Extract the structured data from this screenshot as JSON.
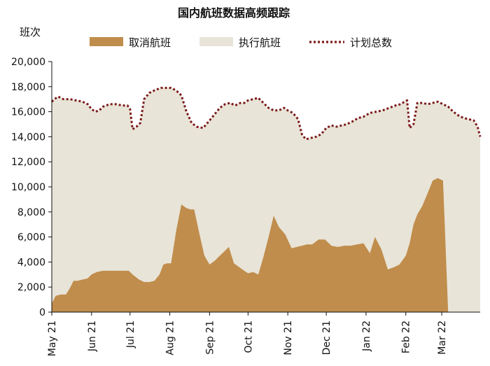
{
  "chart_data": {
    "type": "area",
    "title": "国内航班数据高频跟踪",
    "ylabel": "班次",
    "ylim": [
      0,
      20000
    ],
    "yticks": [
      0,
      2000,
      4000,
      6000,
      8000,
      10000,
      12000,
      14000,
      16000,
      18000,
      20000
    ],
    "ytick_labels": [
      "0",
      "2,000",
      "4,000",
      "6,000",
      "8,000",
      "10,000",
      "12,000",
      "14,000",
      "16,000",
      "18,000",
      "20,000"
    ],
    "xlim": [
      "2021-05-01",
      "2022-03-31"
    ],
    "xticks": [
      "2021-05-01",
      "2021-06-01",
      "2021-07-01",
      "2021-08-01",
      "2021-09-01",
      "2021-10-01",
      "2021-11-01",
      "2021-12-01",
      "2022-01-01",
      "2022-02-01",
      "2022-03-01"
    ],
    "xtick_labels": [
      "May 21",
      "Jun 21",
      "Jul 21",
      "Aug 21",
      "Sep 21",
      "Oct 21",
      "Nov 21",
      "Dec 21",
      "Jan 22",
      "Feb 22",
      "Mar 22"
    ],
    "legend_position": "top",
    "colors": {
      "cancelled": "#c08d4c",
      "executed": "#e8e4d8",
      "total": "#7b1a1a"
    },
    "series": [
      {
        "name": "取消航班",
        "kind": "area",
        "x": [
          "2021-05-01",
          "2021-05-04",
          "2021-05-08",
          "2021-05-12",
          "2021-05-15",
          "2021-05-18",
          "2021-05-21",
          "2021-05-25",
          "2021-05-29",
          "2021-06-01",
          "2021-06-05",
          "2021-06-10",
          "2021-06-15",
          "2021-06-20",
          "2021-06-25",
          "2021-06-30",
          "2021-07-03",
          "2021-07-08",
          "2021-07-12",
          "2021-07-16",
          "2021-07-20",
          "2021-07-24",
          "2021-07-27",
          "2021-07-30",
          "2021-08-02",
          "2021-08-06",
          "2021-08-10",
          "2021-08-14",
          "2021-08-17",
          "2021-08-20",
          "2021-08-24",
          "2021-08-28",
          "2021-09-01",
          "2021-09-05",
          "2021-09-09",
          "2021-09-12",
          "2021-09-16",
          "2021-09-20",
          "2021-09-24",
          "2021-09-28",
          "2021-10-01",
          "2021-10-05",
          "2021-10-09",
          "2021-10-13",
          "2021-10-17",
          "2021-10-21",
          "2021-10-25",
          "2021-10-30",
          "2021-11-04",
          "2021-11-08",
          "2021-11-12",
          "2021-11-16",
          "2021-11-20",
          "2021-11-25",
          "2021-11-30",
          "2021-12-05",
          "2021-12-10",
          "2021-12-15",
          "2021-12-20",
          "2021-12-25",
          "2021-12-30",
          "2022-01-04",
          "2022-01-08",
          "2022-01-13",
          "2022-01-18",
          "2022-01-23",
          "2022-01-27",
          "2022-02-01",
          "2022-02-04",
          "2022-02-07",
          "2022-02-10",
          "2022-02-14",
          "2022-02-18",
          "2022-02-22",
          "2022-02-26",
          "2022-03-02",
          "2022-03-06",
          "2022-03-10",
          "2022-03-14",
          "2022-03-18",
          "2022-03-22",
          "2022-03-26",
          "2022-03-29",
          "2022-03-31"
        ],
        "values": [
          700,
          1300,
          1400,
          1400,
          1900,
          2500,
          2500,
          2600,
          2700,
          3000,
          3200,
          3300,
          3300,
          3300,
          3300,
          3300,
          3000,
          2600,
          2400,
          2400,
          2500,
          3000,
          3800,
          3900,
          3900,
          6500,
          8600,
          8300,
          8200,
          8200,
          6300,
          4500,
          3800,
          4100,
          4500,
          4800,
          5200,
          3900,
          3600,
          3300,
          3100,
          3200,
          3000,
          4400,
          6000,
          7700,
          6800,
          6200,
          5100,
          5200,
          5300,
          5400,
          5400,
          5800,
          5800,
          5300,
          5200,
          5300,
          5300,
          5400,
          5500,
          4700,
          6000,
          5000,
          3400,
          3600,
          3800,
          4500,
          5500,
          7000,
          7800,
          8500,
          9500,
          10500,
          10700,
          10500,
          0,
          0,
          0,
          0,
          0,
          0,
          0,
          0
        ]
      },
      {
        "name": "执行航班",
        "kind": "area"
      },
      {
        "name": "计划总数",
        "kind": "line",
        "x": [
          "2021-05-01",
          "2021-05-03",
          "2021-05-06",
          "2021-05-10",
          "2021-05-15",
          "2021-05-20",
          "2021-05-25",
          "2021-05-29",
          "2021-06-01",
          "2021-06-04",
          "2021-06-07",
          "2021-06-10",
          "2021-06-15",
          "2021-06-20",
          "2021-06-25",
          "2021-06-29",
          "2021-07-01",
          "2021-07-03",
          "2021-07-06",
          "2021-07-09",
          "2021-07-12",
          "2021-07-16",
          "2021-07-20",
          "2021-07-25",
          "2021-07-30",
          "2021-08-02",
          "2021-08-04",
          "2021-08-07",
          "2021-08-10",
          "2021-08-14",
          "2021-08-18",
          "2021-08-22",
          "2021-08-27",
          "2021-09-01",
          "2021-09-05",
          "2021-09-09",
          "2021-09-13",
          "2021-09-17",
          "2021-09-21",
          "2021-09-25",
          "2021-09-28",
          "2021-10-01",
          "2021-10-05",
          "2021-10-09",
          "2021-10-13",
          "2021-10-17",
          "2021-10-21",
          "2021-10-25",
          "2021-10-29",
          "2021-11-01",
          "2021-11-05",
          "2021-11-09",
          "2021-11-12",
          "2021-11-15",
          "2021-11-19",
          "2021-11-23",
          "2021-11-27",
          "2021-12-01",
          "2021-12-05",
          "2021-12-09",
          "2021-12-13",
          "2021-12-17",
          "2021-12-21",
          "2021-12-26",
          "2021-12-30",
          "2022-01-04",
          "2022-01-09",
          "2022-01-14",
          "2022-01-19",
          "2022-01-24",
          "2022-01-28",
          "2022-01-31",
          "2022-02-02",
          "2022-02-04",
          "2022-02-07",
          "2022-02-10",
          "2022-02-14",
          "2022-02-18",
          "2022-02-22",
          "2022-02-26",
          "2022-03-02",
          "2022-03-06",
          "2022-03-10",
          "2022-03-14",
          "2022-03-18",
          "2022-03-22",
          "2022-03-26",
          "2022-03-29",
          "2022-03-31"
        ],
        "values": [
          16800,
          17000,
          17200,
          17000,
          17000,
          16900,
          16800,
          16600,
          16200,
          16000,
          16100,
          16400,
          16600,
          16600,
          16500,
          16500,
          16200,
          14600,
          14800,
          15100,
          17000,
          17500,
          17700,
          17900,
          17900,
          17900,
          17800,
          17600,
          17300,
          16000,
          15100,
          14800,
          14700,
          15300,
          15800,
          16300,
          16600,
          16700,
          16500,
          16700,
          16700,
          16900,
          17000,
          17100,
          16700,
          16300,
          16100,
          16100,
          16300,
          16100,
          15900,
          15400,
          14200,
          13800,
          13900,
          14000,
          14200,
          14700,
          14900,
          14800,
          14900,
          15000,
          15200,
          15500,
          15600,
          15900,
          16000,
          16100,
          16300,
          16500,
          16600,
          16800,
          16900,
          14700,
          15000,
          16700,
          16700,
          16600,
          16700,
          16800,
          16600,
          16400,
          16000,
          15700,
          15500,
          15400,
          15300,
          14800,
          14000
        ]
      }
    ]
  }
}
